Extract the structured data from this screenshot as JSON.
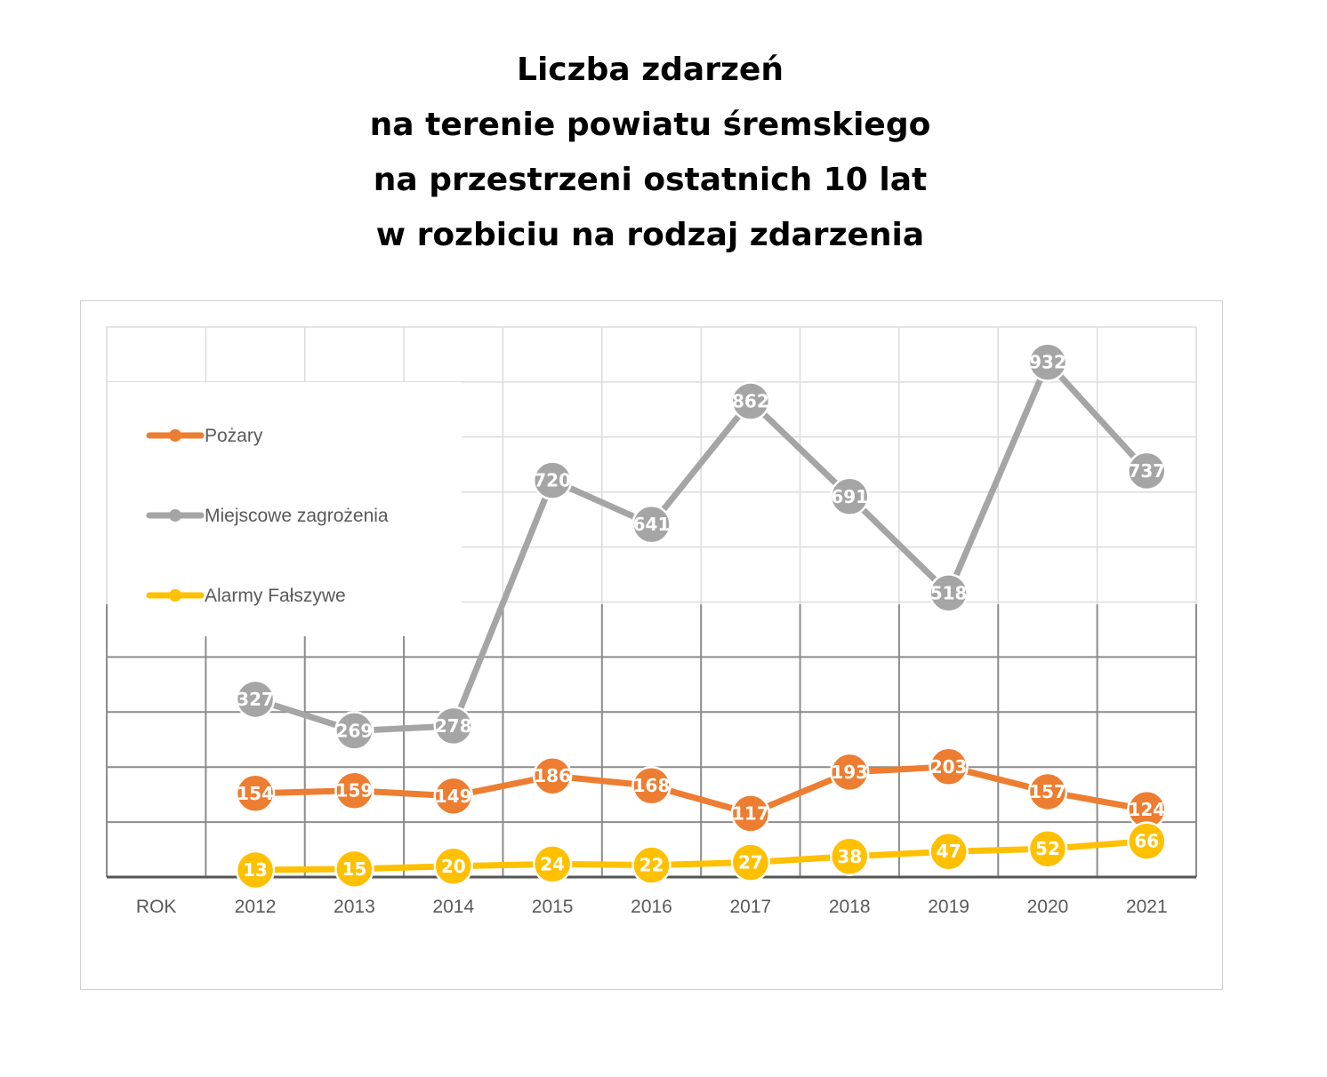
{
  "title_lines": [
    "Liczba zdarzeń",
    "na terenie powiatu śremskiego",
    "na przestrzeni ostatnich 10 lat",
    "w rozbiciu na rodzaj zdarzenia"
  ],
  "chart_data": {
    "type": "line",
    "title": "Liczba zdarzeń na terenie powiatu śremskiego na przestrzeni ostatnich 10 lat w rozbiciu na rodzaj zdarzenia",
    "categories": [
      "ROK",
      "2012",
      "2013",
      "2014",
      "2015",
      "2016",
      "2017",
      "2018",
      "2019",
      "2020",
      "2021"
    ],
    "series": [
      {
        "name": "Pożary",
        "color": "#ED7D31",
        "values": [
          null,
          154,
          159,
          149,
          186,
          168,
          117,
          193,
          203,
          157,
          124
        ]
      },
      {
        "name": "Miejscowe zagrożenia",
        "color": "#A5A5A5",
        "values": [
          null,
          327,
          269,
          278,
          720,
          641,
          862,
          691,
          518,
          932,
          737
        ]
      },
      {
        "name": "Alarmy Fałszywe",
        "color": "#FFC000",
        "values": [
          null,
          13,
          15,
          20,
          24,
          22,
          27,
          38,
          47,
          52,
          66
        ]
      }
    ],
    "data_labels": true,
    "grid": true,
    "legend_position": "left"
  }
}
